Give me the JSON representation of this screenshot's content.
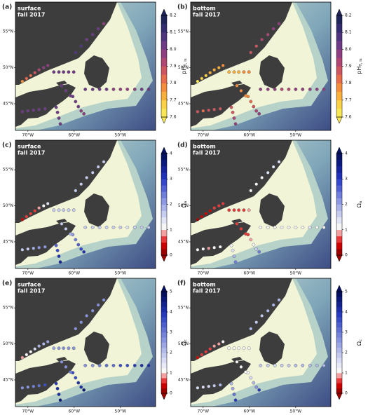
{
  "stations": {
    "lon": [
      -71.2,
      -70.3,
      -69.4,
      -68.5,
      -67.6,
      -66.6,
      -65.7,
      -64.4,
      -63.3,
      -62.3,
      -61.2,
      -60.1,
      -59.7,
      -58.5,
      -57.3,
      -56.0,
      -54.8,
      -53.6,
      -57.6,
      -56.0,
      -54.5,
      -53.0,
      -51.5,
      -50.0,
      -48.5,
      -46.9,
      -45.4,
      -43.9,
      -71.2,
      -70.0,
      -68.8,
      -67.6,
      -66.3,
      -63.9,
      -63.6,
      -63.3,
      -63.0,
      -60.3,
      -59.7,
      -59.1,
      -58.5,
      -57.9,
      -62.7,
      -61.8,
      -60.8
    ],
    "lat": [
      48.1,
      48.5,
      48.9,
      49.3,
      49.7,
      50.0,
      50.3,
      49.4,
      49.4,
      49.4,
      49.4,
      49.4,
      52.1,
      53.0,
      53.9,
      54.6,
      55.4,
      56.1,
      47.0,
      47.0,
      47.0,
      47.0,
      47.0,
      47.0,
      47.0,
      47.0,
      47.0,
      47.0,
      43.9,
      44.0,
      44.1,
      44.2,
      44.3,
      44.5,
      43.8,
      43.0,
      42.2,
      46.0,
      45.3,
      44.6,
      44.0,
      43.6,
      47.5,
      46.8,
      46.1
    ]
  },
  "chart_data": [
    {
      "type": "map",
      "label": "(a)",
      "annotation": [
        "surface",
        "fall 2017"
      ],
      "xlim": [
        -72.7,
        -42.4
      ],
      "ylim": [
        41.3,
        59.1
      ],
      "xticks": [
        {
          "value": -70,
          "label": "70°W"
        },
        {
          "value": -60,
          "label": "60°W"
        },
        {
          "value": -50,
          "label": "50°W"
        }
      ],
      "yticks": [
        {
          "value": 45,
          "label": "45°N"
        },
        {
          "value": 50,
          "label": "50°N"
        },
        {
          "value": 55,
          "label": "55°N"
        }
      ],
      "values": [
        7.78,
        7.8,
        7.82,
        7.85,
        7.9,
        7.95,
        7.98,
        8.0,
        8.02,
        8.0,
        8.01,
        8.0,
        8.05,
        8.05,
        8.02,
        8.0,
        8.0,
        7.98,
        8.02,
        8.0,
        8.0,
        8.0,
        7.98,
        7.98,
        7.98,
        7.98,
        8.0,
        8.0,
        8.0,
        8.0,
        8.02,
        8.02,
        8.0,
        8.02,
        8.02,
        8.0,
        8.0,
        8.0,
        8.0,
        8.0,
        7.98,
        7.98,
        8.0,
        8.0,
        8.0
      ],
      "colorbar": {
        "label": "pH",
        "label_sub": "T, is",
        "lim": [
          7.6,
          8.2
        ],
        "extend": "both",
        "ticks": [
          7.6,
          7.7,
          7.8,
          7.9,
          {
            "value": 8,
            "label": "8.0"
          },
          8.1,
          8.2
        ],
        "colors": [
          "#f9e855",
          "#fbd245",
          "#fbb03b",
          "#f68d3c",
          "#e86b4a",
          "#cf5560",
          "#b04674",
          "#8f3f81",
          "#6e3a87",
          "#4f3480",
          "#332c70",
          "#1f2459"
        ]
      }
    },
    {
      "type": "map",
      "label": "(b)",
      "annotation": [
        "bottom",
        "fall 2017"
      ],
      "xlim": [
        -72.7,
        -42.4
      ],
      "ylim": [
        41.3,
        59.1
      ],
      "xticks": [
        {
          "value": -70,
          "label": "70°W"
        },
        {
          "value": -60,
          "label": "60°W"
        },
        {
          "value": -50,
          "label": "50°W"
        }
      ],
      "yticks": [
        {
          "value": 45,
          "label": "45°N"
        },
        {
          "value": 50,
          "label": "50°N"
        },
        {
          "value": 55,
          "label": "55°N"
        }
      ],
      "values": [
        7.62,
        7.65,
        7.68,
        7.7,
        7.72,
        7.72,
        7.75,
        7.72,
        7.7,
        7.72,
        7.75,
        7.75,
        7.85,
        7.85,
        7.9,
        7.9,
        7.95,
        7.95,
        7.95,
        7.95,
        7.95,
        7.92,
        7.92,
        7.95,
        7.95,
        7.95,
        7.95,
        7.95,
        7.85,
        7.82,
        7.85,
        7.88,
        7.85,
        7.85,
        7.85,
        7.9,
        7.95,
        7.78,
        7.8,
        7.85,
        7.9,
        7.95,
        7.75,
        7.75,
        7.75
      ],
      "colorbar": {
        "label": "pH",
        "label_sub": "T, is",
        "lim": [
          7.6,
          8.2
        ],
        "extend": "both",
        "ticks": [
          7.6,
          7.7,
          7.8,
          7.9,
          {
            "value": 8,
            "label": "8.0"
          },
          8.1,
          8.2
        ],
        "colors": [
          "#f9e855",
          "#fbd245",
          "#fbb03b",
          "#f68d3c",
          "#e86b4a",
          "#cf5560",
          "#b04674",
          "#8f3f81",
          "#6e3a87",
          "#4f3480",
          "#332c70",
          "#1f2459"
        ]
      }
    },
    {
      "type": "map",
      "label": "(c)",
      "annotation": [
        "surface",
        "fall 2017"
      ],
      "xlim": [
        -72.7,
        -42.4
      ],
      "ylim": [
        41.3,
        59.1
      ],
      "xticks": [
        {
          "value": -70,
          "label": "70°W"
        },
        {
          "value": -60,
          "label": "60°W"
        },
        {
          "value": -50,
          "label": "50°W"
        }
      ],
      "yticks": [
        {
          "value": 45,
          "label": "45°N"
        },
        {
          "value": 50,
          "label": "50°N"
        },
        {
          "value": 55,
          "label": "55°N"
        }
      ],
      "values": [
        0.4,
        0.5,
        0.6,
        0.7,
        0.9,
        1.1,
        1.3,
        1.5,
        1.5,
        1.6,
        1.5,
        1.5,
        1.6,
        1.5,
        1.5,
        1.5,
        1.6,
        1.5,
        1.5,
        1.6,
        1.5,
        1.5,
        1.5,
        1.5,
        1.4,
        1.5,
        1.5,
        1.6,
        1.6,
        1.7,
        1.8,
        2.0,
        2.2,
        2.5,
        2.8,
        3.0,
        3.3,
        2.2,
        2.4,
        2.6,
        2.8,
        3.0,
        1.5,
        1.6,
        1.8
      ],
      "colorbar": {
        "label": "Ω",
        "label_sub": "a",
        "lim": [
          0,
          4
        ],
        "extend": "both",
        "ticks": [
          0,
          1,
          2,
          3,
          4
        ],
        "colors": [
          "#9e0000",
          "#cc0000",
          "#e83a3a",
          "#f4a0a0",
          "#f5f5f5",
          "#e0e4f5",
          "#c6cdf0",
          "#a9b3ea",
          "#8c98e3",
          "#6f7ddc",
          "#5261d4",
          "#3547cc",
          "#2030b8",
          "#15239c",
          "#0c1a80",
          "#061264"
        ]
      }
    },
    {
      "type": "map",
      "label": "(d)",
      "annotation": [
        "bottom",
        "fall 2017"
      ],
      "xlim": [
        -72.7,
        -42.4
      ],
      "ylim": [
        41.3,
        59.1
      ],
      "xticks": [
        {
          "value": -70,
          "label": "70°W"
        },
        {
          "value": -60,
          "label": "60°W"
        },
        {
          "value": -50,
          "label": "50°W"
        }
      ],
      "yticks": [
        {
          "value": 45,
          "label": "45°N"
        },
        {
          "value": 50,
          "label": "50°N"
        },
        {
          "value": 55,
          "label": "55°N"
        }
      ],
      "values": [
        0.2,
        0.3,
        0.4,
        0.4,
        0.5,
        0.5,
        0.6,
        0.6,
        0.6,
        0.7,
        0.7,
        0.8,
        1.2,
        1.2,
        1.1,
        1.3,
        1.4,
        1.3,
        1.2,
        1.2,
        1.1,
        1.1,
        1.1,
        1.2,
        1.2,
        1.3,
        1.2,
        1.2,
        1.0,
        1.0,
        0.9,
        1.1,
        1.2,
        1.2,
        1.4,
        1.8,
        2.4,
        0.7,
        0.9,
        1.2,
        1.6,
        2.4,
        0.6,
        0.7,
        0.7
      ],
      "colorbar": {
        "label": "Ω",
        "label_sub": "a",
        "lim": [
          0,
          4
        ],
        "extend": "both",
        "ticks": [
          0,
          1,
          2,
          3,
          4
        ],
        "colors": [
          "#9e0000",
          "#cc0000",
          "#e83a3a",
          "#f4a0a0",
          "#f5f5f5",
          "#e0e4f5",
          "#c6cdf0",
          "#a9b3ea",
          "#8c98e3",
          "#6f7ddc",
          "#5261d4",
          "#3547cc",
          "#2030b8",
          "#15239c",
          "#0c1a80",
          "#061264"
        ]
      }
    },
    {
      "type": "map",
      "label": "(e)",
      "annotation": [
        "surface",
        "fall 2017"
      ],
      "xlim": [
        -72.7,
        -42.4
      ],
      "ylim": [
        41.3,
        59.1
      ],
      "xticks": [
        {
          "value": -70,
          "label": "70°W"
        },
        {
          "value": -60,
          "label": "60°W"
        },
        {
          "value": -50,
          "label": "50°W"
        }
      ],
      "yticks": [
        {
          "value": 45,
          "label": "45°N"
        },
        {
          "value": 50,
          "label": "50°N"
        },
        {
          "value": 55,
          "label": "55°N"
        }
      ],
      "values": [
        0.8,
        1.0,
        1.2,
        1.5,
        2.0,
        2.2,
        2.4,
        2.4,
        2.5,
        2.5,
        2.6,
        2.5,
        2.6,
        2.5,
        2.5,
        2.6,
        2.5,
        2.6,
        2.5,
        2.6,
        2.8,
        3.0,
        3.2,
        3.5,
        3.6,
        3.8,
        4.0,
        4.0,
        2.6,
        2.7,
        2.8,
        3.2,
        3.5,
        3.8,
        4.0,
        4.2,
        4.5,
        3.5,
        3.7,
        4.0,
        4.2,
        4.5,
        2.5,
        2.6,
        2.8
      ],
      "colorbar": {
        "label": "Ω",
        "label_sub": "c",
        "lim": [
          0,
          5
        ],
        "extend": "both",
        "ticks": [
          0,
          1,
          2,
          3,
          4,
          5
        ],
        "colors": [
          "#9e0000",
          "#cc0000",
          "#e83a3a",
          "#f4a0a0",
          "#f7f7f7",
          "#e8eaf7",
          "#d7dbf3",
          "#c4caee",
          "#b0b8e9",
          "#9ca6e4",
          "#8894df",
          "#7482d9",
          "#6070d3",
          "#4c5ecd",
          "#384cc6",
          "#263abd",
          "#1b2ea7",
          "#12228f",
          "#0b1877",
          "#050f5f"
        ]
      }
    },
    {
      "type": "map",
      "label": "(f)",
      "annotation": [
        "bottom",
        "fall 2017"
      ],
      "xlim": [
        -72.7,
        -42.4
      ],
      "ylim": [
        41.3,
        59.1
      ],
      "xticks": [
        {
          "value": -70,
          "label": "70°W"
        },
        {
          "value": -60,
          "label": "60°W"
        },
        {
          "value": -50,
          "label": "50°W"
        }
      ],
      "yticks": [
        {
          "value": 45,
          "label": "45°N"
        },
        {
          "value": 50,
          "label": "50°N"
        },
        {
          "value": 55,
          "label": "55°N"
        }
      ],
      "values": [
        0.4,
        0.5,
        0.6,
        0.7,
        0.8,
        0.9,
        1.0,
        1.0,
        1.1,
        1.1,
        1.2,
        1.2,
        2.0,
        1.9,
        1.8,
        2.0,
        2.2,
        2.1,
        1.8,
        1.8,
        1.7,
        1.8,
        1.9,
        2.0,
        2.0,
        2.1,
        2.0,
        2.0,
        1.6,
        1.6,
        1.5,
        1.8,
        2.0,
        2.0,
        2.4,
        3.0,
        3.8,
        1.2,
        1.5,
        2.0,
        2.6,
        3.8,
        1.0,
        1.1,
        1.1
      ],
      "colorbar": {
        "label": "Ω",
        "label_sub": "c",
        "lim": [
          0,
          5
        ],
        "extend": "both",
        "ticks": [
          0,
          1,
          2,
          3,
          4,
          5
        ],
        "colors": [
          "#9e0000",
          "#cc0000",
          "#e83a3a",
          "#f4a0a0",
          "#f7f7f7",
          "#e8eaf7",
          "#d7dbf3",
          "#c4caee",
          "#b0b8e9",
          "#9ca6e4",
          "#8894df",
          "#7482d9",
          "#6070d3",
          "#4c5ecd",
          "#384cc6",
          "#263abd",
          "#1b2ea7",
          "#12228f",
          "#0b1877",
          "#050f5f"
        ]
      }
    }
  ]
}
